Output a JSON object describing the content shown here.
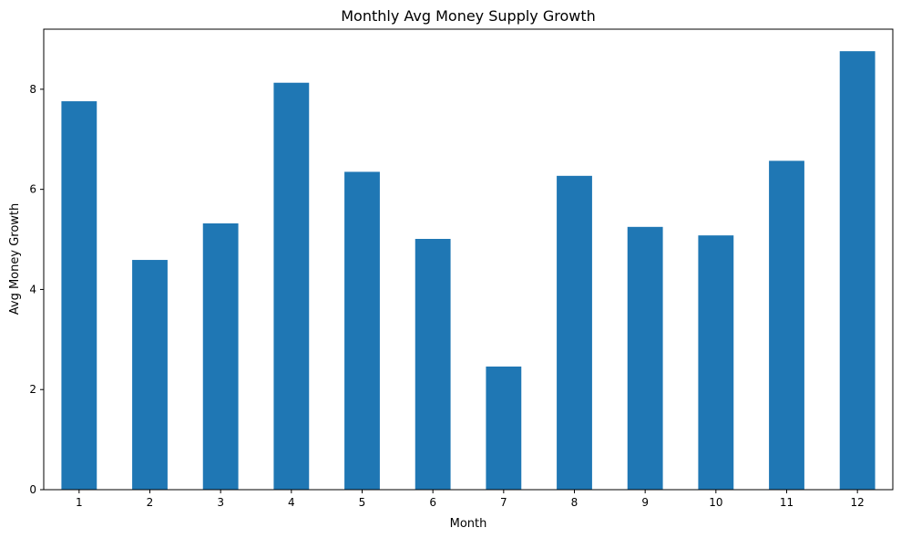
{
  "chart_data": {
    "type": "bar",
    "title": "Monthly Avg Money Supply Growth",
    "xlabel": "Month",
    "ylabel": "Avg Money Growth",
    "categories": [
      "1",
      "2",
      "3",
      "4",
      "5",
      "6",
      "7",
      "8",
      "9",
      "10",
      "11",
      "12"
    ],
    "values": [
      7.76,
      4.59,
      5.32,
      8.13,
      6.35,
      5.01,
      2.46,
      6.27,
      5.25,
      5.08,
      6.57,
      8.76
    ],
    "ylim": [
      0,
      9.2
    ],
    "yticks": [
      0,
      2,
      4,
      6,
      8
    ],
    "grid": false,
    "bar_color": "#1f77b4"
  }
}
